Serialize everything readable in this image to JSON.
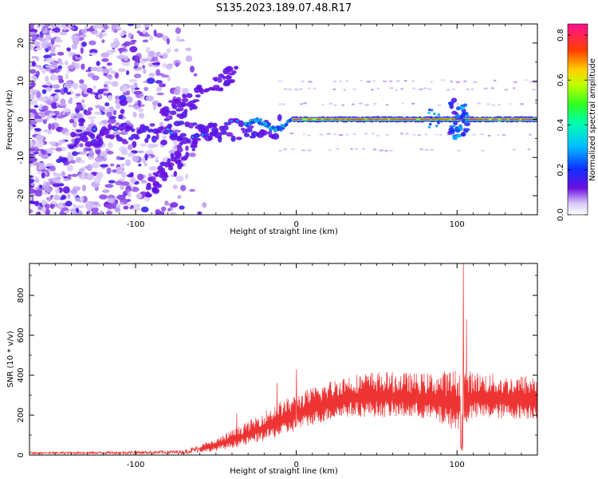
{
  "title": "S135.2023.189.07.48.R17",
  "chart_data": [
    {
      "type": "heatmap",
      "xlabel": "Height of straight line (km)",
      "ylabel": "Frequency (Hz)",
      "xlim": [
        -166,
        150
      ],
      "ylim": [
        -25,
        25
      ],
      "xticks": [
        -100,
        0,
        100
      ],
      "yticks": [
        -20,
        -10,
        0,
        10,
        20
      ],
      "colorbar": {
        "label": "Normalized spectral amplitude",
        "range": [
          0,
          0.85
        ],
        "ticks": [
          "0.0",
          "0.2",
          "0.4",
          "0.6",
          "0.8"
        ],
        "tick_values": [
          0.0,
          0.2,
          0.4,
          0.6,
          0.8
        ]
      },
      "features": [
        {
          "x_range": [
            -166,
            -70
          ],
          "freq_range": [
            -25,
            25
          ],
          "amplitude": 0.05,
          "description_level": "scattered noise"
        },
        {
          "x_range": [
            -140,
            -15
          ],
          "freq_center": -4,
          "amplitude": 0.12
        },
        {
          "x_range": [
            -30,
            -10
          ],
          "freq_center": -2,
          "amplitude": 0.3
        },
        {
          "x_range": [
            0,
            150
          ],
          "freq_center": 0,
          "amplitude": 0.85
        }
      ]
    },
    {
      "type": "line",
      "xlabel": "Height of straight line (km)",
      "ylabel": "SNR (10 * v/v)",
      "xlim": [
        -166,
        150
      ],
      "ylim": [
        0,
        960
      ],
      "xticks": [
        -100,
        0,
        100
      ],
      "yticks": [
        0,
        200,
        400,
        600,
        800
      ],
      "color": "#ee3333",
      "envelope": [
        {
          "x": -166,
          "low": 5,
          "high": 15
        },
        {
          "x": -100,
          "low": 5,
          "high": 20
        },
        {
          "x": -70,
          "low": 5,
          "high": 25
        },
        {
          "x": -50,
          "low": 20,
          "high": 80
        },
        {
          "x": -30,
          "low": 50,
          "high": 170
        },
        {
          "x": -10,
          "low": 90,
          "high": 270
        },
        {
          "x": 10,
          "low": 150,
          "high": 340
        },
        {
          "x": 30,
          "low": 190,
          "high": 400
        },
        {
          "x": 50,
          "low": 190,
          "high": 420
        },
        {
          "x": 80,
          "low": 180,
          "high": 410
        },
        {
          "x": 100,
          "low": 120,
          "high": 430
        },
        {
          "x": 110,
          "low": 180,
          "high": 420
        },
        {
          "x": 130,
          "low": 180,
          "high": 400
        },
        {
          "x": 150,
          "low": 180,
          "high": 400
        }
      ],
      "peaks": [
        {
          "x": -37,
          "y": 210
        },
        {
          "x": -12,
          "y": 360
        },
        {
          "x": 0,
          "y": 430
        },
        {
          "x": 104,
          "y": 960
        },
        {
          "x": 106,
          "y": 680
        }
      ]
    }
  ]
}
